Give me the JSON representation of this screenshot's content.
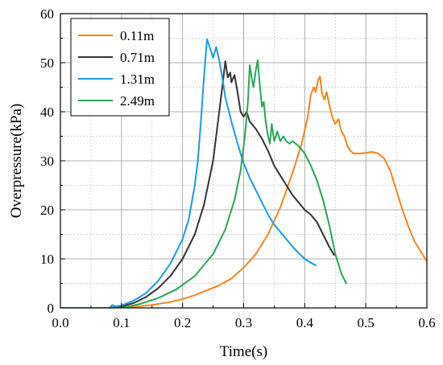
{
  "chart_data": {
    "type": "line",
    "xlabel": "Time(s)",
    "ylabel": "Overpressure(kPa)",
    "xlim": [
      0.0,
      0.6
    ],
    "ylim": [
      0,
      60
    ],
    "xticks": [
      "0.0",
      "0.1",
      "0.2",
      "0.3",
      "0.4",
      "0.5",
      "0.6"
    ],
    "yticks": [
      "0",
      "10",
      "20",
      "30",
      "40",
      "50",
      "60"
    ],
    "grid": true,
    "legend_position": "top-left",
    "series": [
      {
        "name": "0.11m",
        "color": "#F28522",
        "points": [
          [
            0.0,
            0
          ],
          [
            0.08,
            0.0
          ],
          [
            0.12,
            0.2
          ],
          [
            0.15,
            0.6
          ],
          [
            0.18,
            1.2
          ],
          [
            0.2,
            1.8
          ],
          [
            0.22,
            2.6
          ],
          [
            0.24,
            3.6
          ],
          [
            0.26,
            4.6
          ],
          [
            0.28,
            6.0
          ],
          [
            0.3,
            8.2
          ],
          [
            0.32,
            11.0
          ],
          [
            0.34,
            15.0
          ],
          [
            0.36,
            20.5
          ],
          [
            0.38,
            27.5
          ],
          [
            0.395,
            33.5
          ],
          [
            0.405,
            39.0
          ],
          [
            0.41,
            43.5
          ],
          [
            0.415,
            45.0
          ],
          [
            0.418,
            44.0
          ],
          [
            0.422,
            46.5
          ],
          [
            0.425,
            47.2
          ],
          [
            0.428,
            44.0
          ],
          [
            0.432,
            42.5
          ],
          [
            0.436,
            44.0
          ],
          [
            0.44,
            41.5
          ],
          [
            0.445,
            39.0
          ],
          [
            0.45,
            37.5
          ],
          [
            0.455,
            38.5
          ],
          [
            0.46,
            36.0
          ],
          [
            0.465,
            35.0
          ],
          [
            0.47,
            33.0
          ],
          [
            0.475,
            32.0
          ],
          [
            0.48,
            31.5
          ],
          [
            0.49,
            31.5
          ],
          [
            0.5,
            31.6
          ],
          [
            0.51,
            31.8
          ],
          [
            0.52,
            31.5
          ],
          [
            0.53,
            30.5
          ],
          [
            0.54,
            28.0
          ],
          [
            0.55,
            24.0
          ],
          [
            0.56,
            20.0
          ],
          [
            0.57,
            16.5
          ],
          [
            0.58,
            13.5
          ],
          [
            0.59,
            11.5
          ],
          [
            0.6,
            9.5
          ]
        ]
      },
      {
        "name": "0.71m",
        "color": "#333333",
        "points": [
          [
            0.0,
            0
          ],
          [
            0.08,
            0.0
          ],
          [
            0.1,
            0.3
          ],
          [
            0.12,
            1.0
          ],
          [
            0.14,
            2.2
          ],
          [
            0.16,
            4.0
          ],
          [
            0.18,
            6.5
          ],
          [
            0.2,
            10.0
          ],
          [
            0.22,
            15.0
          ],
          [
            0.235,
            21.0
          ],
          [
            0.25,
            30.0
          ],
          [
            0.26,
            40.0
          ],
          [
            0.265,
            45.0
          ],
          [
            0.27,
            50.3
          ],
          [
            0.274,
            47.0
          ],
          [
            0.278,
            48.0
          ],
          [
            0.28,
            46.0
          ],
          [
            0.285,
            47.5
          ],
          [
            0.29,
            44.0
          ],
          [
            0.295,
            40.0
          ],
          [
            0.3,
            39.0
          ],
          [
            0.305,
            40.0
          ],
          [
            0.31,
            38.0
          ],
          [
            0.32,
            36.5
          ],
          [
            0.33,
            34.5
          ],
          [
            0.34,
            32.0
          ],
          [
            0.35,
            29.0
          ],
          [
            0.36,
            27.0
          ],
          [
            0.37,
            25.0
          ],
          [
            0.38,
            23.0
          ],
          [
            0.39,
            21.5
          ],
          [
            0.4,
            20.0
          ],
          [
            0.41,
            19.0
          ],
          [
            0.42,
            17.5
          ],
          [
            0.43,
            15.0
          ],
          [
            0.44,
            12.5
          ],
          [
            0.448,
            10.8
          ]
        ]
      },
      {
        "name": "1.31m",
        "color": "#1E9BE0",
        "points": [
          [
            0.0,
            0
          ],
          [
            0.08,
            0.0
          ],
          [
            0.085,
            0.6
          ],
          [
            0.09,
            0.3
          ],
          [
            0.1,
            0.5
          ],
          [
            0.12,
            1.5
          ],
          [
            0.14,
            3.0
          ],
          [
            0.16,
            5.5
          ],
          [
            0.18,
            9.0
          ],
          [
            0.2,
            14.0
          ],
          [
            0.21,
            18.0
          ],
          [
            0.22,
            25.0
          ],
          [
            0.225,
            30.0
          ],
          [
            0.23,
            38.0
          ],
          [
            0.235,
            47.0
          ],
          [
            0.24,
            54.8
          ],
          [
            0.245,
            53.0
          ],
          [
            0.25,
            51.0
          ],
          [
            0.255,
            53.2
          ],
          [
            0.26,
            50.5
          ],
          [
            0.265,
            47.0
          ],
          [
            0.27,
            43.0
          ],
          [
            0.28,
            38.0
          ],
          [
            0.29,
            33.5
          ],
          [
            0.3,
            29.5
          ],
          [
            0.31,
            26.5
          ],
          [
            0.32,
            24.0
          ],
          [
            0.33,
            21.5
          ],
          [
            0.34,
            19.0
          ],
          [
            0.35,
            17.0
          ],
          [
            0.36,
            15.5
          ],
          [
            0.37,
            14.0
          ],
          [
            0.38,
            12.5
          ],
          [
            0.39,
            11.2
          ],
          [
            0.4,
            10.0
          ],
          [
            0.41,
            9.2
          ],
          [
            0.418,
            8.7
          ]
        ]
      },
      {
        "name": "2.49m",
        "color": "#2DA556",
        "points": [
          [
            0.0,
            0
          ],
          [
            0.1,
            0.0
          ],
          [
            0.13,
            0.8
          ],
          [
            0.16,
            2.0
          ],
          [
            0.19,
            3.8
          ],
          [
            0.22,
            6.5
          ],
          [
            0.25,
            11.0
          ],
          [
            0.27,
            16.0
          ],
          [
            0.285,
            22.0
          ],
          [
            0.295,
            28.0
          ],
          [
            0.302,
            35.0
          ],
          [
            0.307,
            42.0
          ],
          [
            0.31,
            49.5
          ],
          [
            0.313,
            47.0
          ],
          [
            0.316,
            45.0
          ],
          [
            0.32,
            48.5
          ],
          [
            0.323,
            50.5
          ],
          [
            0.326,
            46.0
          ],
          [
            0.33,
            41.0
          ],
          [
            0.333,
            42.0
          ],
          [
            0.336,
            38.0
          ],
          [
            0.34,
            35.0
          ],
          [
            0.343,
            33.5
          ],
          [
            0.346,
            37.5
          ],
          [
            0.35,
            34.0
          ],
          [
            0.355,
            36.0
          ],
          [
            0.36,
            34.0
          ],
          [
            0.365,
            35.0
          ],
          [
            0.37,
            34.0
          ],
          [
            0.375,
            33.5
          ],
          [
            0.38,
            34.0
          ],
          [
            0.39,
            33.0
          ],
          [
            0.4,
            31.5
          ],
          [
            0.41,
            29.0
          ],
          [
            0.42,
            26.0
          ],
          [
            0.43,
            22.0
          ],
          [
            0.44,
            17.0
          ],
          [
            0.45,
            11.0
          ],
          [
            0.46,
            7.0
          ],
          [
            0.468,
            5.0
          ]
        ]
      }
    ]
  }
}
